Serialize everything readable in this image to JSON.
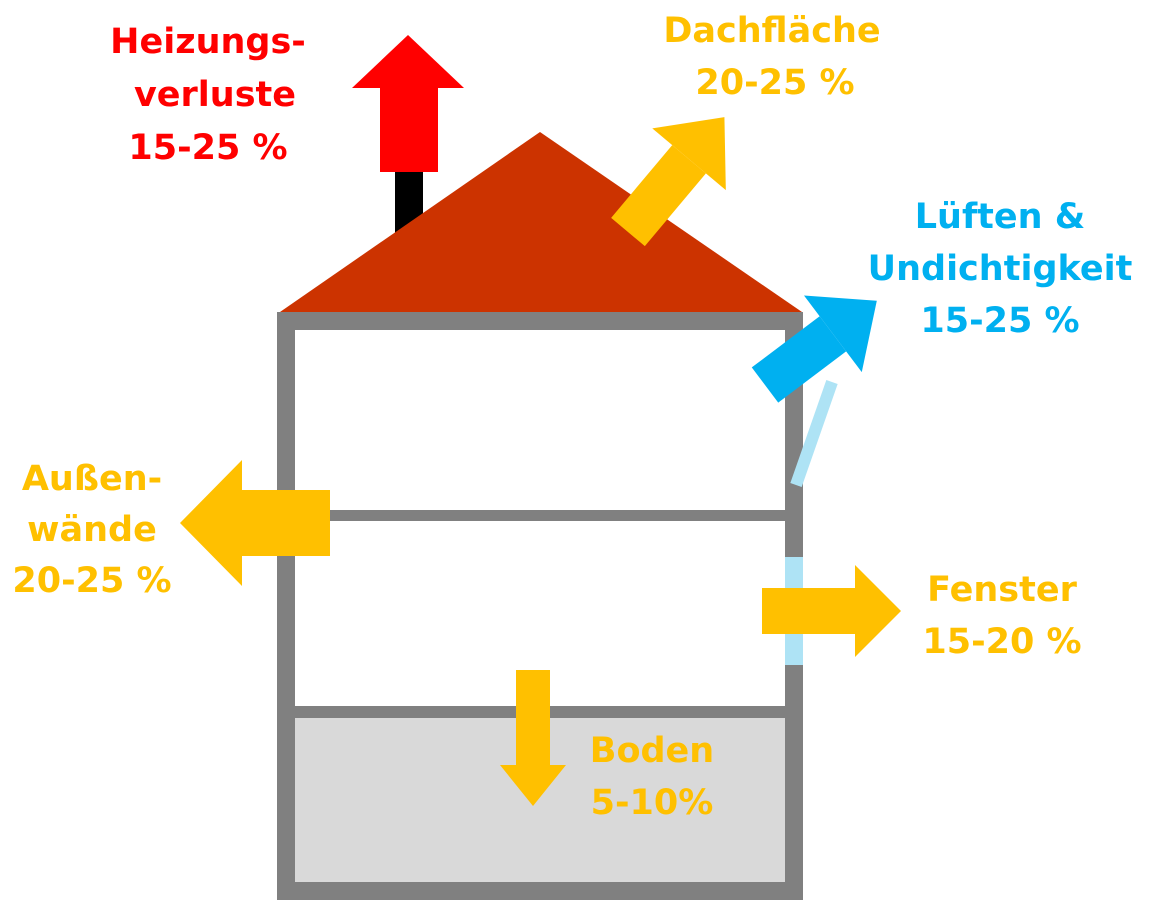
{
  "labels": [
    {
      "lines": [
        "Heizungs-",
        "verluste",
        "15-25 %"
      ]
    },
    {
      "lines": [
        "Dachfläche",
        "20-25 %"
      ]
    },
    {
      "lines": [
        "Lüften &",
        "Undichtigkeit",
        "15-25 %"
      ]
    },
    {
      "lines": [
        "Außen-",
        "wände",
        "20-25 %"
      ]
    },
    {
      "lines": [
        "Fenster",
        "15-20 %"
      ]
    },
    {
      "lines": [
        "Boden",
        "5-10%"
      ]
    }
  ]
}
